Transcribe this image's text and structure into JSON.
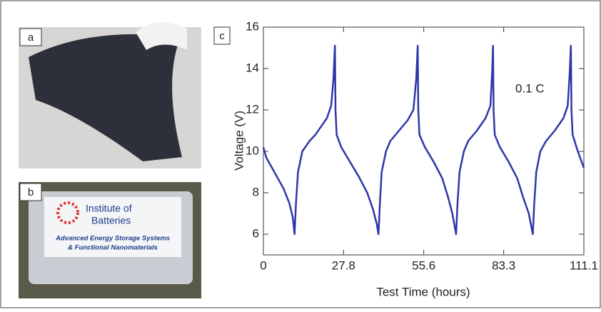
{
  "panels": [
    {
      "label": "a"
    },
    {
      "label": "b",
      "texts": [
        "Institute of",
        "Batteries",
        "Advanced Energy Storage Systems",
        "& Functional Nanomaterials"
      ]
    }
  ],
  "chart_data": {
    "type": "line",
    "panel_label": "c",
    "annotation": "0.1 C",
    "x_label": "Test Time (hours)",
    "y_label": "Voltage (V)",
    "color": "#2e35a8",
    "xlim": [
      0,
      111.1
    ],
    "xticks": [
      0,
      27.8,
      55.6,
      83.3,
      111.1
    ],
    "ylim": [
      5,
      16
    ],
    "yticks": [
      6,
      8,
      10,
      12,
      14,
      16
    ],
    "x": [
      0,
      1,
      3,
      5,
      7,
      9,
      10.2,
      10.8,
      11.3,
      12,
      13.5,
      16,
      18,
      20,
      22,
      23.5,
      24.3,
      24.8,
      25,
      25.4,
      27,
      30,
      33,
      36,
      38,
      39.3,
      39.9,
      40.4,
      41,
      42.5,
      44,
      47,
      50,
      52,
      53,
      53.5,
      53.7,
      54.1,
      56,
      59,
      62,
      64,
      65.5,
      66.8,
      67.3,
      68,
      69.5,
      71,
      74,
      77,
      78.7,
      79.3,
      79.6,
      79.8,
      80.2,
      82,
      85,
      88,
      90,
      92,
      93.4,
      93.9,
      94.6,
      96,
      98,
      101,
      104,
      105.5,
      106.2,
      106.6,
      106.8,
      107.2,
      109,
      111.1
    ],
    "values": [
      10.2,
      9.7,
      9.2,
      8.7,
      8.2,
      7.5,
      6.8,
      6.0,
      7.5,
      9.0,
      10.0,
      10.5,
      10.8,
      11.2,
      11.6,
      12.2,
      13.5,
      15.1,
      12.0,
      10.8,
      10.2,
      9.5,
      8.8,
      8.0,
      7.2,
      6.5,
      6.0,
      7.5,
      9.0,
      10.0,
      10.5,
      11.0,
      11.5,
      12.0,
      13.5,
      15.1,
      12.0,
      10.8,
      10.2,
      9.5,
      8.7,
      7.8,
      7.0,
      6.0,
      7.5,
      9.0,
      10.0,
      10.5,
      11.0,
      11.6,
      12.2,
      13.8,
      15.1,
      12.0,
      10.8,
      10.2,
      9.5,
      8.7,
      7.8,
      7.0,
      6.0,
      7.5,
      9.0,
      10.0,
      10.5,
      11.0,
      11.6,
      12.2,
      13.8,
      15.1,
      12.0,
      10.8,
      10.0,
      9.2
    ]
  }
}
